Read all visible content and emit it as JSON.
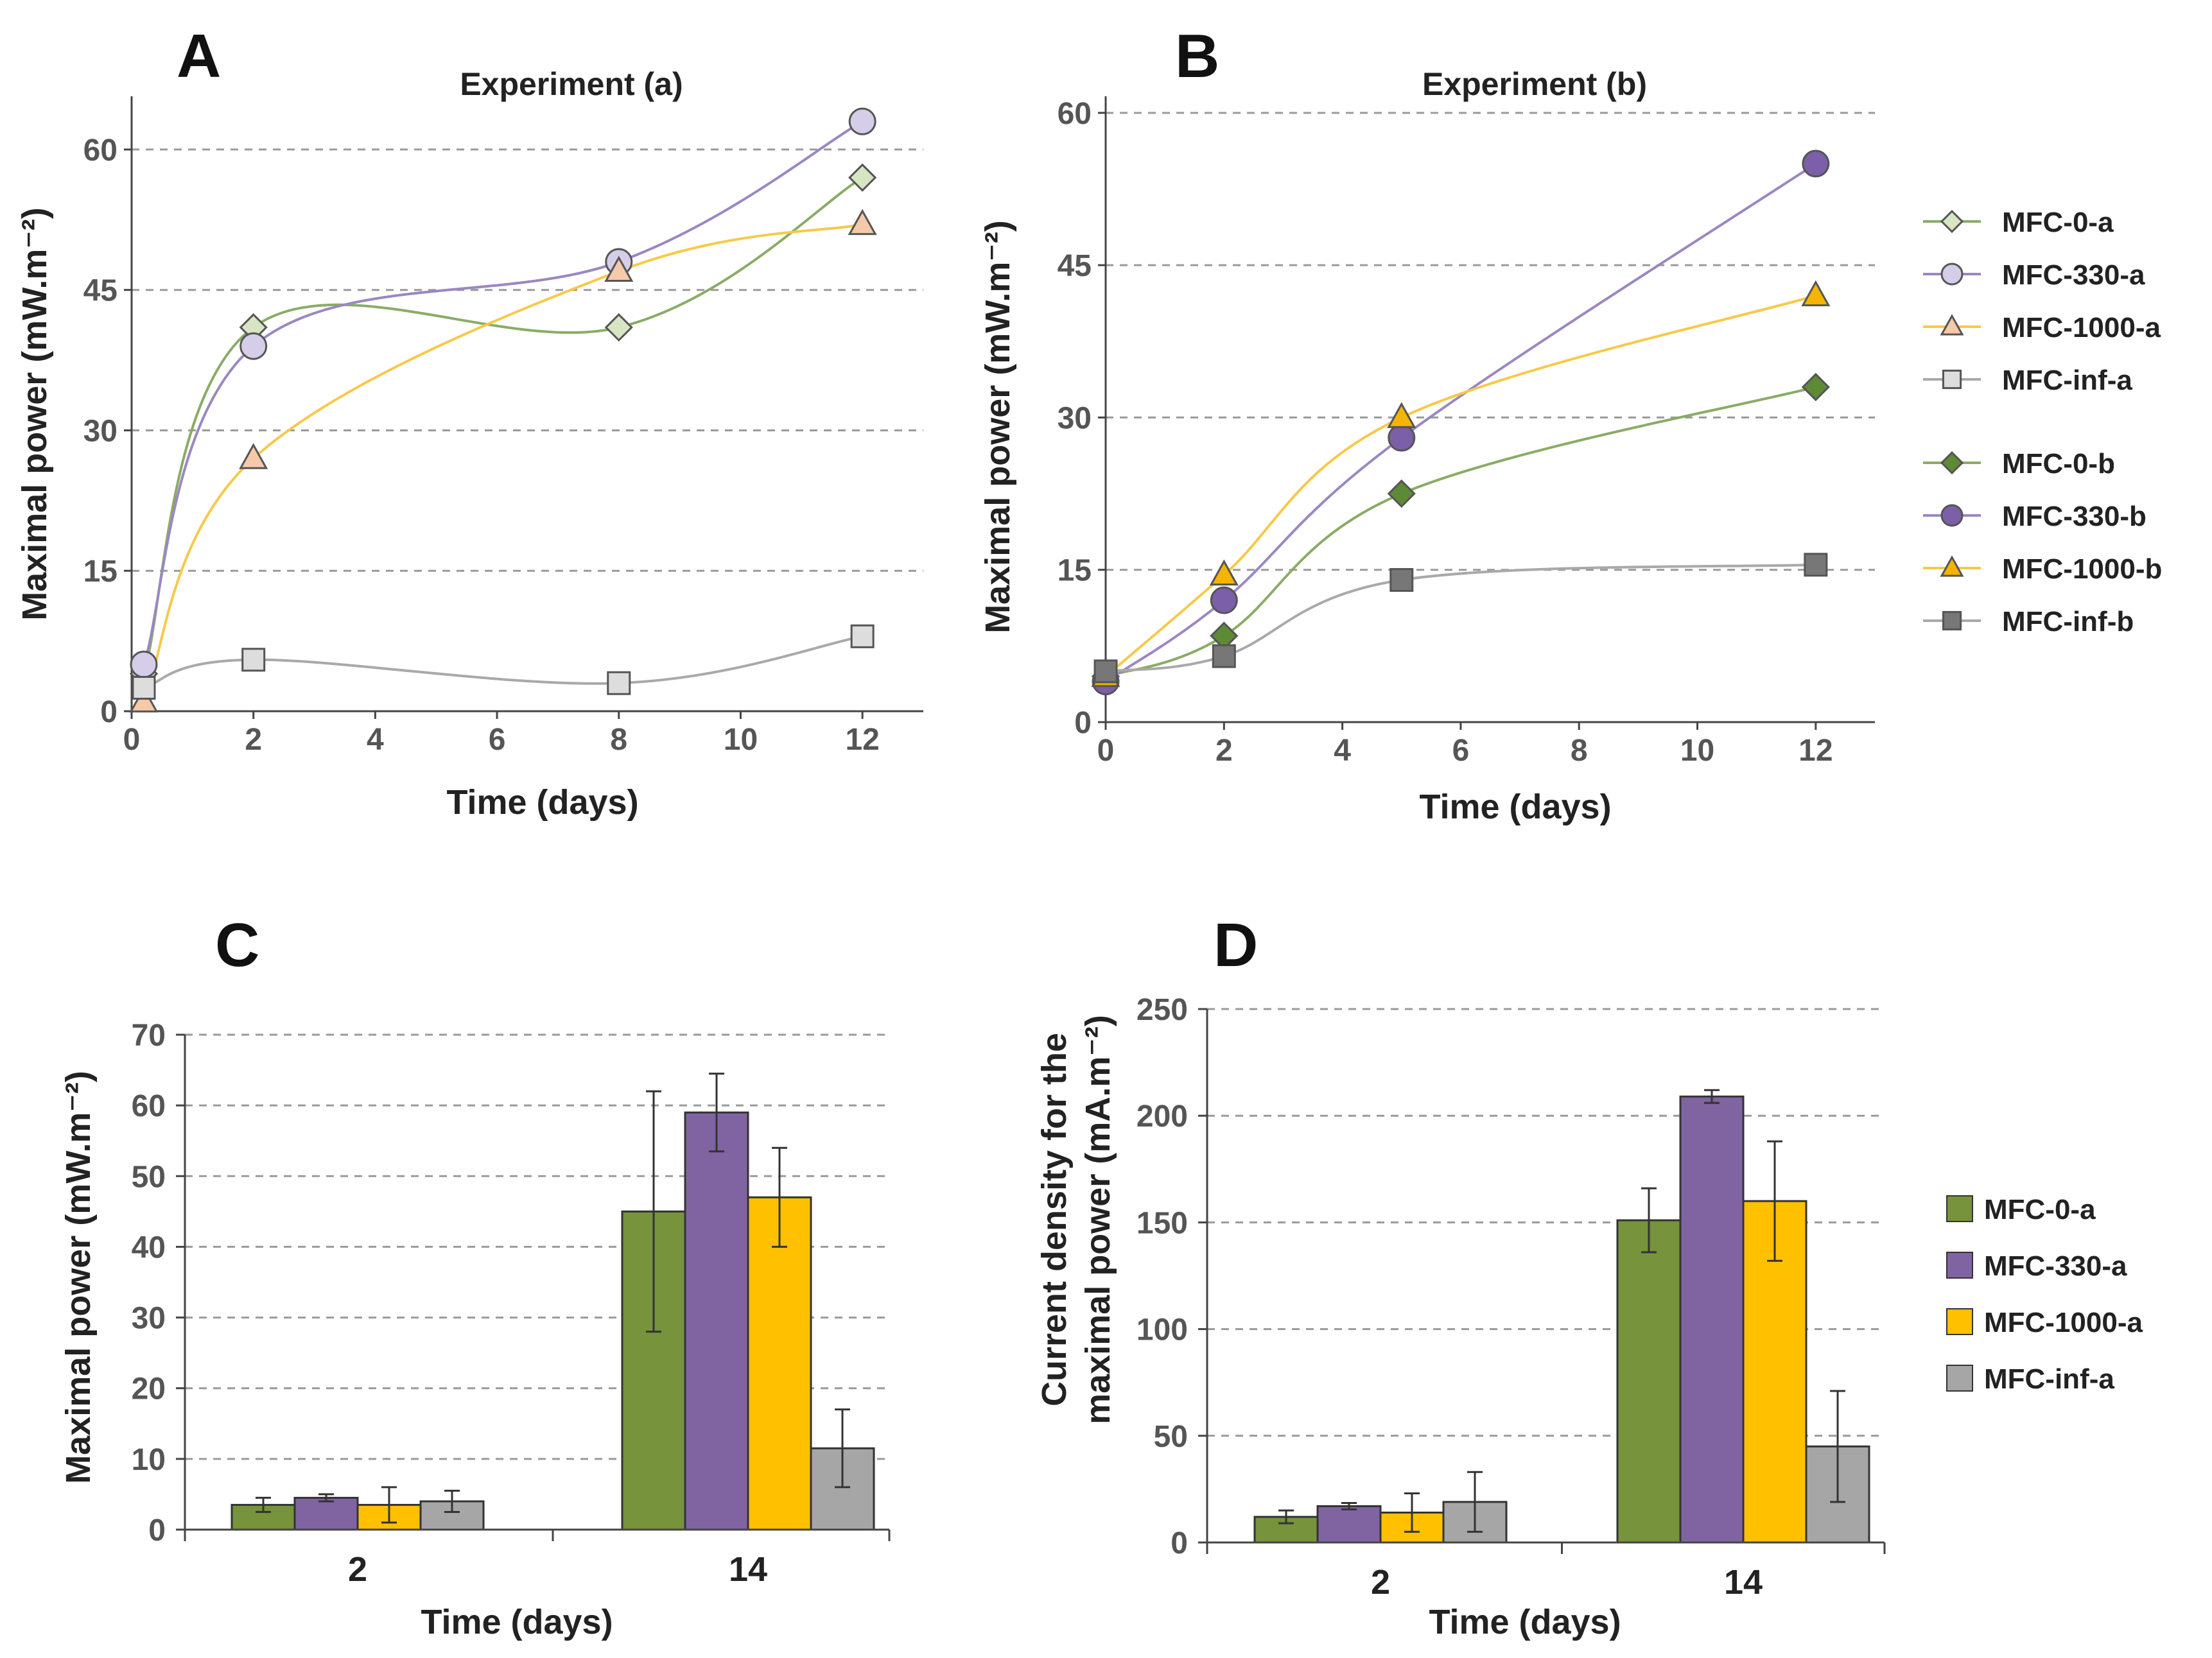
{
  "panels": {
    "A": {
      "letter": "A",
      "chart_data": {
        "type": "line",
        "title": "Experiment (a)",
        "xlabel": "Time (days)",
        "ylabel": "Maximal power (mW.m⁻²)",
        "xlim": [
          0,
          13
        ],
        "ylim": [
          0,
          65
        ],
        "xticks": [
          0,
          2,
          4,
          6,
          8,
          10,
          12
        ],
        "yticks": [
          0,
          15,
          30,
          45,
          60
        ],
        "grid": true,
        "series": [
          {
            "name": "MFC-0-a",
            "color": "#8aac66",
            "fill": "#d7e5c3",
            "marker": "diamond",
            "points": [
              [
                0.2,
                4
              ],
              [
                2,
                41
              ],
              [
                8,
                41
              ],
              [
                12,
                57
              ]
            ]
          },
          {
            "name": "MFC-330-a",
            "color": "#9b87c2",
            "fill": "#d6cde8",
            "marker": "circle",
            "points": [
              [
                0.2,
                5
              ],
              [
                2,
                39
              ],
              [
                8,
                48
              ],
              [
                12,
                63
              ]
            ]
          },
          {
            "name": "MFC-1000-a",
            "color": "#f7c948",
            "fill": "#f6c9a8",
            "marker": "triangle",
            "points": [
              [
                0.2,
                1
              ],
              [
                2,
                27
              ],
              [
                8,
                47
              ],
              [
                12,
                52
              ]
            ]
          },
          {
            "name": "MFC-inf-a",
            "color": "#a9a9a9",
            "fill": "#dddddd",
            "marker": "square",
            "points": [
              [
                0.2,
                2.5
              ],
              [
                2,
                5.5
              ],
              [
                8,
                3
              ],
              [
                12,
                8
              ]
            ]
          }
        ]
      }
    },
    "B": {
      "letter": "B",
      "chart_data": {
        "type": "line",
        "title": "Experiment (b)",
        "xlabel": "Time (days)",
        "ylabel": "Maximal power (mW.m⁻²)",
        "xlim": [
          0,
          13
        ],
        "ylim": [
          0,
          61
        ],
        "xticks": [
          0,
          2,
          4,
          6,
          8,
          10,
          12
        ],
        "yticks": [
          0,
          15,
          30,
          45,
          60
        ],
        "grid": true,
        "series": [
          {
            "name": "MFC-0-b",
            "color": "#8aac66",
            "fill": "#5e8a35",
            "marker": "diamond",
            "points": [
              [
                0,
                4.5
              ],
              [
                2,
                8.5
              ],
              [
                5,
                22.5
              ],
              [
                12,
                33
              ]
            ]
          },
          {
            "name": "MFC-330-b",
            "color": "#9b87c2",
            "fill": "#7b5fa8",
            "marker": "circle",
            "points": [
              [
                0,
                4
              ],
              [
                2,
                12
              ],
              [
                5,
                28
              ],
              [
                12,
                55
              ]
            ]
          },
          {
            "name": "MFC-1000-b",
            "color": "#f7c948",
            "fill": "#f4b400",
            "marker": "triangle",
            "points": [
              [
                0,
                4.5
              ],
              [
                2,
                14.5
              ],
              [
                5,
                30
              ],
              [
                12,
                42
              ]
            ]
          },
          {
            "name": "MFC-inf-b",
            "color": "#a9a9a9",
            "fill": "#777777",
            "marker": "square",
            "points": [
              [
                0,
                5
              ],
              [
                2,
                6.5
              ],
              [
                5,
                14
              ],
              [
                12,
                15.5
              ]
            ]
          }
        ]
      }
    },
    "legend_ab": {
      "items": [
        {
          "name": "MFC-0-a",
          "line": "#8aac66",
          "fill": "#d7e5c3",
          "marker": "diamond"
        },
        {
          "name": "MFC-330-a",
          "line": "#9b87c2",
          "fill": "#d6cde8",
          "marker": "circle"
        },
        {
          "name": "MFC-1000-a",
          "line": "#f7c948",
          "fill": "#f6c9a8",
          "marker": "triangle"
        },
        {
          "name": "MFC-inf-a",
          "line": "#a9a9a9",
          "fill": "#dddddd",
          "marker": "square"
        },
        {
          "name": "MFC-0-b",
          "line": "#8aac66",
          "fill": "#5e8a35",
          "marker": "diamond"
        },
        {
          "name": "MFC-330-b",
          "line": "#9b87c2",
          "fill": "#7b5fa8",
          "marker": "circle"
        },
        {
          "name": "MFC-1000-b",
          "line": "#f7c948",
          "fill": "#f4b400",
          "marker": "triangle"
        },
        {
          "name": "MFC-inf-b",
          "line": "#a9a9a9",
          "fill": "#777777",
          "marker": "square"
        }
      ]
    },
    "C": {
      "letter": "C",
      "chart_data": {
        "type": "bar",
        "title": "",
        "xlabel": "Time (days)",
        "ylabel": "Maximal power (mW.m⁻²)",
        "ylim": [
          0,
          70
        ],
        "yticks": [
          0,
          10,
          20,
          30,
          40,
          50,
          60,
          70
        ],
        "categories": [
          "2",
          "14"
        ],
        "grid": true,
        "series": [
          {
            "name": "MFC-0-a",
            "color": "#77933c",
            "values": [
              3.5,
              45
            ],
            "errors": [
              1,
              17
            ]
          },
          {
            "name": "MFC-330-a",
            "color": "#8064a2",
            "values": [
              4.5,
              59
            ],
            "errors": [
              0.5,
              5.5
            ]
          },
          {
            "name": "MFC-1000-a",
            "color": "#ffc000",
            "values": [
              3.5,
              47
            ],
            "errors": [
              2.5,
              7
            ]
          },
          {
            "name": "MFC-inf-a",
            "color": "#a6a6a6",
            "values": [
              4,
              11.5
            ],
            "errors": [
              1.5,
              5.5
            ]
          }
        ]
      }
    },
    "D": {
      "letter": "D",
      "chart_data": {
        "type": "bar",
        "title": "",
        "xlabel": "Time (days)",
        "ylabel_line1": "Current density  for the",
        "ylabel_line2": "maximal power (mA.m⁻²)",
        "ylim": [
          0,
          250
        ],
        "yticks": [
          0,
          50,
          100,
          150,
          200,
          250
        ],
        "categories": [
          "2",
          "14"
        ],
        "grid": true,
        "series": [
          {
            "name": "MFC-0-a",
            "color": "#77933c",
            "values": [
              12,
              151
            ],
            "errors": [
              3,
              15
            ]
          },
          {
            "name": "MFC-330-a",
            "color": "#8064a2",
            "values": [
              17,
              209
            ],
            "errors": [
              1.5,
              3
            ]
          },
          {
            "name": "MFC-1000-a",
            "color": "#ffc000",
            "values": [
              14,
              160
            ],
            "errors": [
              9,
              28
            ]
          },
          {
            "name": "MFC-inf-a",
            "color": "#a6a6a6",
            "values": [
              19,
              45
            ],
            "errors": [
              14,
              26
            ]
          }
        ]
      }
    },
    "legend_cd": {
      "items": [
        {
          "name": "MFC-0-a",
          "color": "#77933c"
        },
        {
          "name": "MFC-330-a",
          "color": "#8064a2"
        },
        {
          "name": "MFC-1000-a",
          "color": "#ffc000"
        },
        {
          "name": "MFC-inf-a",
          "color": "#a6a6a6"
        }
      ]
    }
  }
}
